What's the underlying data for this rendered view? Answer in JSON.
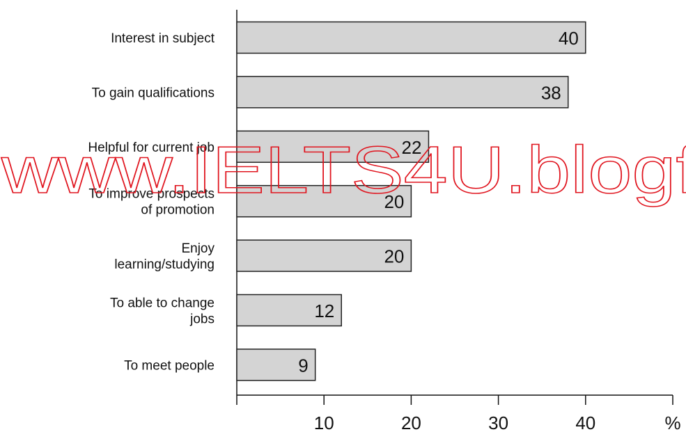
{
  "chart_data": {
    "type": "bar",
    "orientation": "horizontal",
    "categories": [
      "Interest in subject",
      "To gain qualifications",
      "Helpful for current job",
      "To improve prospects\nof promotion",
      "Enjoy\nlearning/studying",
      "To able to change\njobs",
      "To meet people"
    ],
    "values": [
      40,
      38,
      22,
      20,
      20,
      12,
      9
    ],
    "color": "#d4d4d4",
    "xlim": [
      0,
      50
    ],
    "xticks": [
      10,
      20,
      30,
      40,
      {
        "value": 50,
        "label": "%"
      }
    ],
    "watermark": "www.IELTS4U.blogf"
  }
}
